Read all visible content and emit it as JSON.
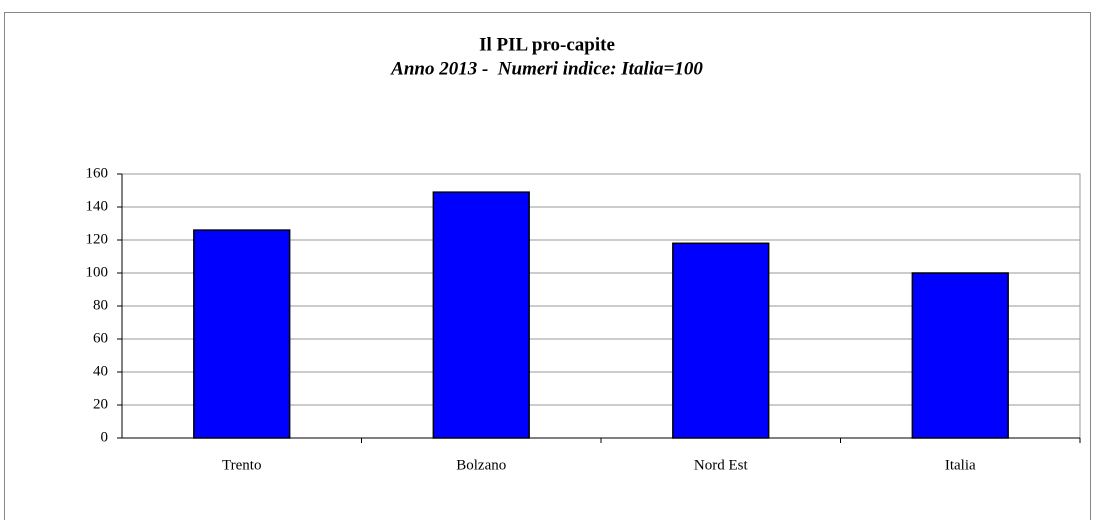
{
  "chart_data": {
    "type": "bar",
    "title": "Il PIL pro-capite",
    "subtitle": "Anno 2013 -  Numeri indice: Italia=100",
    "categories": [
      "Trento",
      "Bolzano",
      "Nord Est",
      "Italia"
    ],
    "values": [
      126,
      149,
      118,
      100
    ],
    "color": "#0000ff",
    "ylim": [
      0,
      160
    ],
    "yticks": [
      0,
      20,
      40,
      60,
      80,
      100,
      120,
      140,
      160
    ],
    "grid": true
  }
}
